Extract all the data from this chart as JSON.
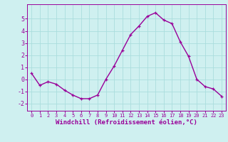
{
  "x": [
    0,
    1,
    2,
    3,
    4,
    5,
    6,
    7,
    8,
    9,
    10,
    11,
    12,
    13,
    14,
    15,
    16,
    17,
    18,
    19,
    20,
    21,
    22,
    23
  ],
  "y": [
    0.5,
    -0.5,
    -0.2,
    -0.4,
    -0.9,
    -1.3,
    -1.6,
    -1.6,
    -1.3,
    0.0,
    1.1,
    2.4,
    3.7,
    4.4,
    5.2,
    5.5,
    4.9,
    4.6,
    3.1,
    1.9,
    0.0,
    -0.6,
    -0.8,
    -1.4
  ],
  "line_color": "#990099",
  "marker": "+",
  "marker_size": 3,
  "bg_color": "#cff0f0",
  "grid_color": "#aadddd",
  "xlabel": "Windchill (Refroidissement éolien,°C)",
  "xlabel_color": "#990099",
  "tick_color": "#990099",
  "yticks": [
    -2,
    -1,
    0,
    1,
    2,
    3,
    4,
    5
  ],
  "ylim": [
    -2.6,
    6.2
  ],
  "xlim": [
    -0.5,
    23.5
  ],
  "line_width": 1.0,
  "tick_fontsize_x": 5.0,
  "tick_fontsize_y": 6.0,
  "xlabel_fontsize": 6.5
}
